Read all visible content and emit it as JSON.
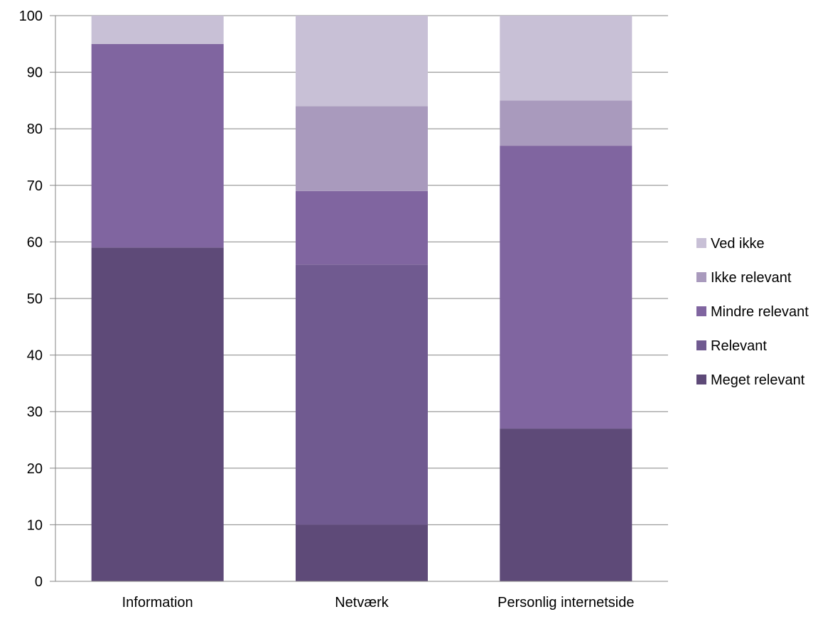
{
  "chart_data": {
    "type": "bar",
    "stacked": true,
    "categories": [
      "Information",
      "Netværk",
      "Personlig internetside"
    ],
    "series": [
      {
        "name": "Meget relevant",
        "values": [
          59,
          10,
          27
        ],
        "color": "#5e4a78"
      },
      {
        "name": "Relevant",
        "values": [
          0,
          46,
          0
        ],
        "color": "#705a90"
      },
      {
        "name": "Mindre relevant",
        "values": [
          36,
          13,
          50
        ],
        "color": "#8065a0"
      },
      {
        "name": "Ikke relevant",
        "values": [
          0,
          15,
          8
        ],
        "color": "#a99abd"
      },
      {
        "name": "Ved ikke",
        "values": [
          5,
          16,
          15
        ],
        "color": "#c8c0d6"
      }
    ],
    "yticks": [
      "0",
      "10",
      "20",
      "30",
      "40",
      "50",
      "60",
      "70",
      "80",
      "90",
      "100"
    ],
    "ylim": [
      0,
      100
    ],
    "grid": true,
    "legend": {
      "placement": "right",
      "order": [
        "Ved ikke",
        "Ikke relevant",
        "Mindre relevant",
        "Relevant",
        "Meget relevant"
      ]
    },
    "colors": {
      "grid": "#868686",
      "axis": "#868686",
      "text": "#000000"
    }
  }
}
